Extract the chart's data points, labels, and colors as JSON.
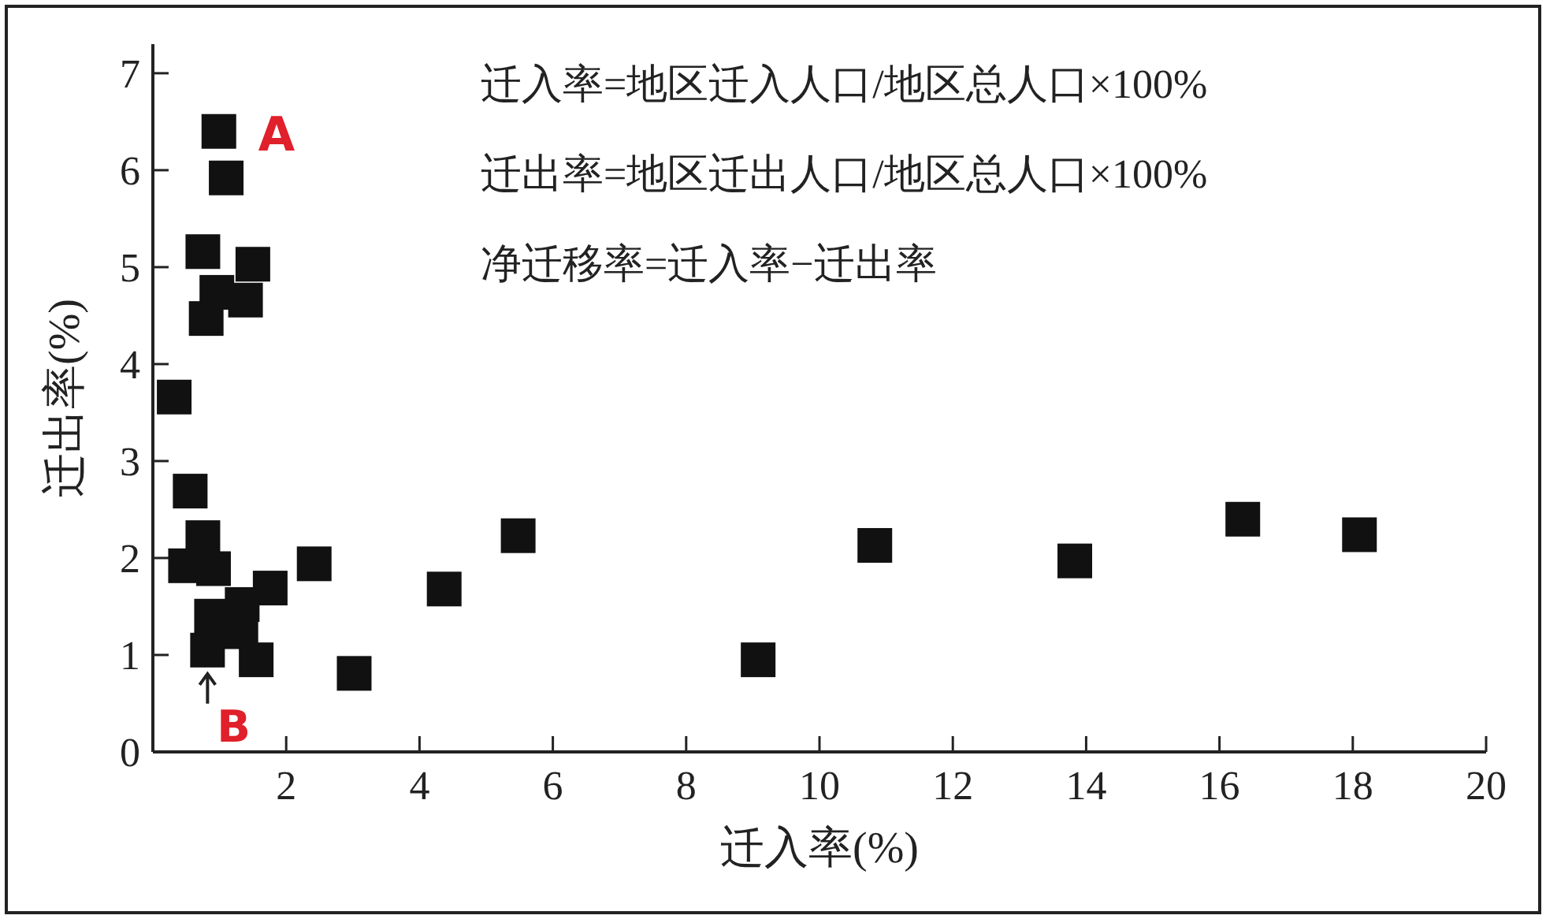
{
  "chart_data": {
    "type": "scatter",
    "xlabel": "迁入率(%)",
    "ylabel": "迁出率(%)",
    "x": [
      0.99,
      1.1,
      0.75,
      1.5,
      0.96,
      1.39,
      0.8,
      0.32,
      0.56,
      0.75,
      0.49,
      0.91,
      1.76,
      2.42,
      1.34,
      0.88,
      1.32,
      0.82,
      1.55,
      3.02,
      4.37,
      5.48,
      9.08,
      10.83,
      13.83,
      16.35,
      18.1
    ],
    "values": [
      6.4,
      5.92,
      5.16,
      5.03,
      4.74,
      4.66,
      4.47,
      3.66,
      2.69,
      2.21,
      1.92,
      1.89,
      1.69,
      1.94,
      1.52,
      1.4,
      1.24,
      1.05,
      0.95,
      0.81,
      1.68,
      2.23,
      0.95,
      2.13,
      1.97,
      2.4,
      2.24
    ],
    "color": "#111111",
    "marker": "square",
    "xlim": [
      0,
      20
    ],
    "ylim": [
      0,
      7.3
    ],
    "xticks": [
      2,
      4,
      6,
      8,
      10,
      12,
      14,
      16,
      18,
      20
    ],
    "yticks": [
      0,
      1,
      2,
      3,
      4,
      5,
      6,
      7
    ],
    "annotations": [
      "迁入率=地区迁入人口/地区总人口×100%",
      "迁出率=地区迁出人口/地区总人口×100%",
      "净迁移率=迁入率−迁出率",
      {
        "text": "A",
        "x": 0.99,
        "y": 6.4
      },
      {
        "text": "B",
        "x": 0.82,
        "y": 1.05
      }
    ]
  }
}
